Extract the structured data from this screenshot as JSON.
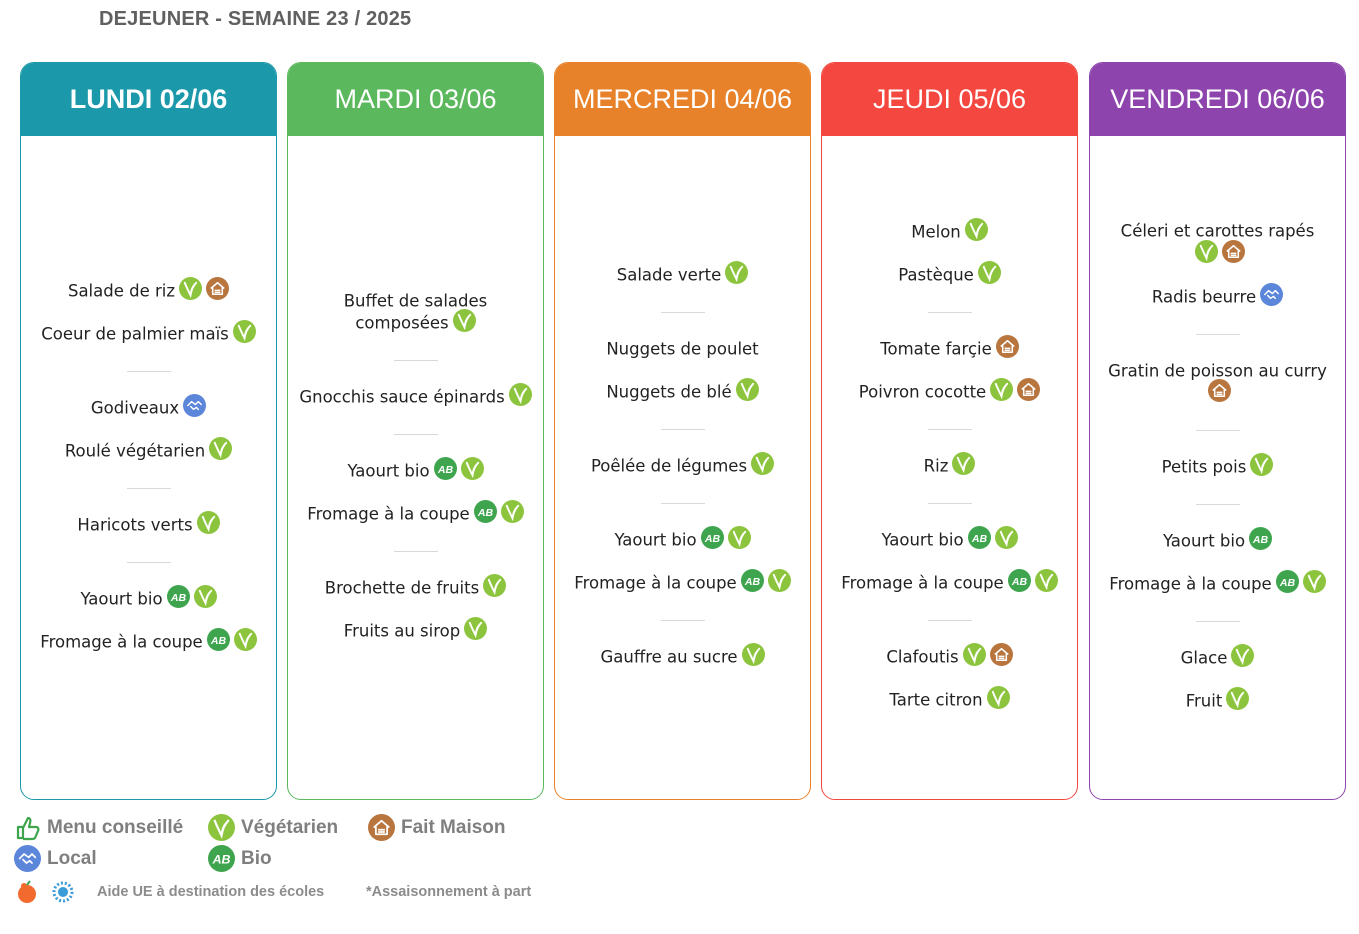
{
  "title": "DEJEUNER - SEMAINE 23 / 2025",
  "colors": {
    "lundi": "#1b98a9",
    "mardi": "#5cb85c",
    "mercredi": "#e8822a",
    "jeudi": "#f4473f",
    "vendredi": "#8e44ad",
    "vegetarien": "#8cc43e",
    "bio": "#3ea54e",
    "fait_maison": "#b8753e",
    "local": "#5b86d9"
  },
  "days": [
    {
      "label": "LUNDI 02/06",
      "courses": [
        [
          {
            "name": "Salade de riz",
            "tags": [
              "vegetarien",
              "fait-maison"
            ]
          },
          {
            "name": "Coeur de palmier maïs",
            "tags": [
              "vegetarien"
            ]
          }
        ],
        [
          {
            "name": "Godiveaux",
            "tags": [
              "local"
            ]
          },
          {
            "name": "Roulé végétarien",
            "tags": [
              "vegetarien"
            ]
          }
        ],
        [
          {
            "name": "Haricots verts",
            "tags": [
              "vegetarien"
            ]
          }
        ],
        [
          {
            "name": "Yaourt bio",
            "tags": [
              "bio",
              "vegetarien"
            ]
          },
          {
            "name": "Fromage à la coupe",
            "tags": [
              "bio",
              "vegetarien"
            ]
          }
        ]
      ]
    },
    {
      "label": "MARDI 03/06",
      "courses": [
        [
          {
            "name": "Buffet de salades composées",
            "tags": [
              "vegetarien"
            ]
          }
        ],
        [
          {
            "name": "Gnocchis sauce épinards",
            "tags": [
              "vegetarien"
            ]
          }
        ],
        [
          {
            "name": "Yaourt bio",
            "tags": [
              "bio",
              "vegetarien"
            ]
          },
          {
            "name": "Fromage à la coupe",
            "tags": [
              "bio",
              "vegetarien"
            ]
          }
        ],
        [
          {
            "name": "Brochette de fruits",
            "tags": [
              "vegetarien"
            ]
          },
          {
            "name": "Fruits au sirop",
            "tags": [
              "vegetarien"
            ]
          }
        ]
      ]
    },
    {
      "label": "MERCREDI 04/06",
      "courses": [
        [
          {
            "name": "Salade verte",
            "tags": [
              "vegetarien"
            ]
          }
        ],
        [
          {
            "name": "Nuggets de poulet",
            "tags": []
          },
          {
            "name": "Nuggets de blé",
            "tags": [
              "vegetarien"
            ]
          }
        ],
        [
          {
            "name": "Poêlée de légumes",
            "tags": [
              "vegetarien"
            ]
          }
        ],
        [
          {
            "name": "Yaourt bio",
            "tags": [
              "bio",
              "vegetarien"
            ]
          },
          {
            "name": "Fromage à la coupe",
            "tags": [
              "bio",
              "vegetarien"
            ]
          }
        ],
        [
          {
            "name": "Gauffre au sucre",
            "tags": [
              "vegetarien"
            ]
          }
        ]
      ]
    },
    {
      "label": "JEUDI 05/06",
      "courses": [
        [
          {
            "name": "Melon",
            "tags": [
              "vegetarien"
            ]
          },
          {
            "name": "Pastèque",
            "tags": [
              "vegetarien"
            ]
          }
        ],
        [
          {
            "name": "Tomate farçie",
            "tags": [
              "fait-maison"
            ]
          },
          {
            "name": "Poivron cocotte",
            "tags": [
              "vegetarien",
              "fait-maison"
            ]
          }
        ],
        [
          {
            "name": "Riz",
            "tags": [
              "vegetarien"
            ]
          }
        ],
        [
          {
            "name": "Yaourt bio",
            "tags": [
              "bio",
              "vegetarien"
            ]
          },
          {
            "name": "Fromage à la coupe",
            "tags": [
              "bio",
              "vegetarien"
            ]
          }
        ],
        [
          {
            "name": "Clafoutis",
            "tags": [
              "vegetarien",
              "fait-maison"
            ]
          },
          {
            "name": "Tarte citron",
            "tags": [
              "vegetarien"
            ]
          }
        ]
      ]
    },
    {
      "label": "VENDREDI 06/06",
      "courses": [
        [
          {
            "name": "Céleri et carottes rapés",
            "tags": [
              "vegetarien",
              "fait-maison"
            ]
          },
          {
            "name": "Radis beurre",
            "tags": [
              "local"
            ]
          }
        ],
        [
          {
            "name": "Gratin de poisson au curry",
            "tags": [
              "fait-maison"
            ]
          }
        ],
        [
          {
            "name": "Petits pois",
            "tags": [
              "vegetarien"
            ]
          }
        ],
        [
          {
            "name": "Yaourt bio",
            "tags": [
              "bio"
            ]
          },
          {
            "name": "Fromage à la coupe",
            "tags": [
              "bio",
              "vegetarien"
            ]
          }
        ],
        [
          {
            "name": "Glace",
            "tags": [
              "vegetarien"
            ]
          },
          {
            "name": "Fruit",
            "tags": [
              "vegetarien"
            ]
          }
        ]
      ]
    }
  ],
  "legend": {
    "menu_conseille": "Menu conseillé",
    "vegetarien": "Végétarien",
    "fait_maison": "Fait Maison",
    "local": "Local",
    "bio": "Bio"
  },
  "footer": {
    "aide_ue": "Aide UE à destination des écoles",
    "assaisonnement": "*Assaisonnement à part"
  }
}
